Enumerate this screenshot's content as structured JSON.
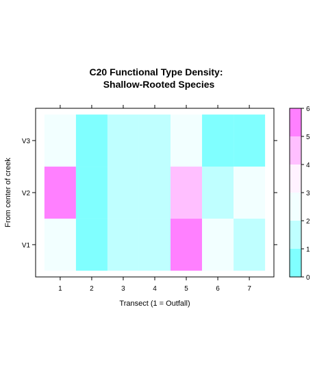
{
  "chart_data": {
    "type": "heatmap",
    "title_lines": [
      "C20 Functional Type Density:",
      "Shallow-Rooted Species"
    ],
    "xlabel": "Transect (1 = Outfall)",
    "ylabel": "From center of creek",
    "x_categories": [
      "1",
      "2",
      "3",
      "4",
      "5",
      "6",
      "7"
    ],
    "y_categories": [
      "V1",
      "V2",
      "V3"
    ],
    "z": [
      [
        2.5,
        0.5,
        1.5,
        1.5,
        5.5,
        2.5,
        1.5
      ],
      [
        5.5,
        0.5,
        1.5,
        1.5,
        4.5,
        1.5,
        2.5
      ],
      [
        2.5,
        0.5,
        1.5,
        1.5,
        2.5,
        0.5,
        0.5
      ]
    ],
    "colorbar": {
      "range": [
        0,
        6
      ],
      "ticks": [
        "0",
        "1",
        "2",
        "3",
        "4",
        "5",
        "6"
      ],
      "colors": [
        "#80FFFF",
        "#BFFFFF",
        "#F2FFFF",
        "#FFF2FF",
        "#FFBFFF",
        "#FF80FF"
      ]
    }
  }
}
